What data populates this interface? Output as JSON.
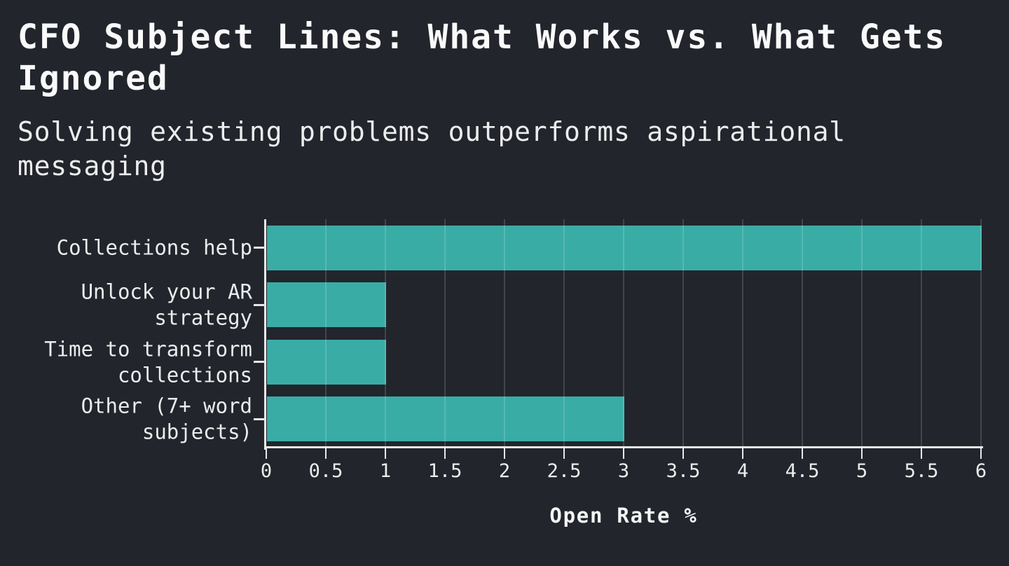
{
  "page": {
    "background_color": "#22252c",
    "text_color": "#ececec",
    "axis_color": "#e8e8e8"
  },
  "header": {
    "title": "CFO Subject Lines: What Works vs. What Gets Ignored",
    "subtitle": "Solving existing problems outperforms aspirational messaging"
  },
  "chart_data": {
    "type": "bar",
    "orientation": "horizontal",
    "title": "CFO Subject Lines: What Works vs. What Gets Ignored",
    "subtitle": "Solving existing problems outperforms aspirational messaging",
    "categories": [
      "Collections help",
      "Unlock your AR strategy",
      "Time to transform collections",
      "Other (7+ word subjects)"
    ],
    "values": [
      6,
      1,
      1,
      3
    ],
    "xlabel": "Open Rate %",
    "ylabel": "",
    "xlim": [
      0,
      6
    ],
    "x_ticks": [
      0,
      0.5,
      1,
      1.5,
      2,
      2.5,
      3,
      3.5,
      4,
      4.5,
      5,
      5.5,
      6
    ],
    "x_tick_labels": [
      "0",
      "0.5",
      "1",
      "1.5",
      "2",
      "2.5",
      "3",
      "3.5",
      "4",
      "4.5",
      "5",
      "5.5",
      "6"
    ],
    "grid": true,
    "legend": false,
    "bar_color": "#3aaca6",
    "gridline_color": "rgba(255,255,255,0.15)"
  }
}
